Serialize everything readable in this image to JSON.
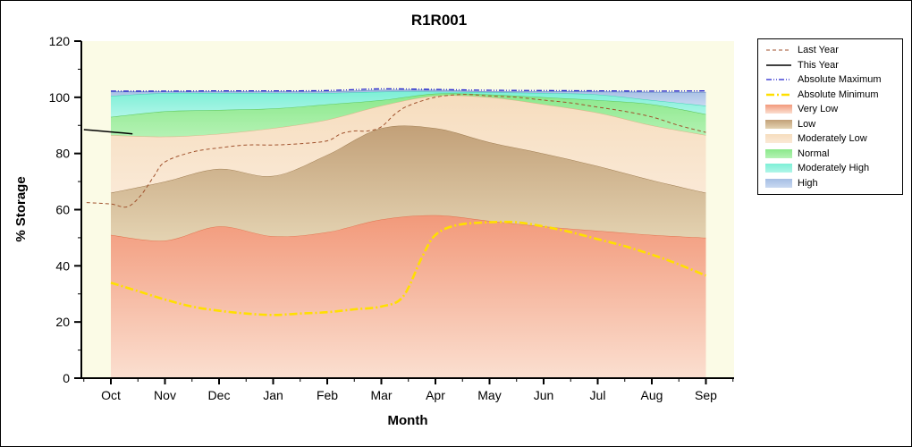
{
  "title": "R1R001",
  "axes": {
    "x_label": "Month",
    "y_label": "% Storage",
    "y_ticks": [
      "0",
      "20",
      "40",
      "60",
      "80",
      "100",
      "120"
    ],
    "months": [
      "Oct",
      "Nov",
      "Dec",
      "Jan",
      "Feb",
      "Mar",
      "Apr",
      "May",
      "Jun",
      "Jul",
      "Aug",
      "Sep"
    ]
  },
  "colors": {
    "figure_background": "#FFFFFF",
    "plot_background": "#FBFBE6",
    "axis": "#000000"
  },
  "legend": {
    "position": "right-outside",
    "items": [
      {
        "label": "Last Year",
        "kind": "line",
        "color": "#A0522D",
        "dash": "4 3",
        "width": 1
      },
      {
        "label": "This Year",
        "kind": "line",
        "color": "#000000",
        "dash": "",
        "width": 1.5
      },
      {
        "label": "Absolute Maximum",
        "kind": "line",
        "color": "#2121CE",
        "dash": "6 2 1 2 1 2",
        "width": 1.3
      },
      {
        "label": "Absolute Minimum",
        "kind": "line",
        "color": "#FFDF00",
        "dash": "9 3 2 3",
        "width": 2.6
      },
      {
        "label": "Very Low",
        "kind": "fill",
        "from": "#F2997A",
        "to": "#FBDFD0"
      },
      {
        "label": "Low",
        "kind": "fill",
        "from": "#C2A078",
        "to": "#E4D3B2"
      },
      {
        "label": "Moderately Low",
        "kind": "fill",
        "from": "#F6DDBE",
        "to": "#FAE9D6"
      },
      {
        "label": "Normal",
        "kind": "fill",
        "from": "#8AE88A",
        "to": "#B4F2B4"
      },
      {
        "label": "Moderately High",
        "kind": "fill",
        "from": "#7DEFD6",
        "to": "#B0F6E8"
      },
      {
        "label": "High",
        "kind": "fill",
        "from": "#A5BEE4",
        "to": "#C9D9F1"
      }
    ]
  },
  "chart_data": {
    "type": "area",
    "title": "R1R001",
    "xlabel": "Month",
    "ylabel": "% Storage",
    "ylim": [
      0,
      120
    ],
    "grid": false,
    "legend_position": "right-outside",
    "categories": [
      "Oct",
      "Nov",
      "Dec",
      "Jan",
      "Feb",
      "Mar",
      "Apr",
      "May",
      "Jun",
      "Jul",
      "Aug",
      "Sep"
    ],
    "bands": [
      {
        "name": "Very Low",
        "top": [
          51,
          49,
          54,
          50.5,
          52,
          56.5,
          58,
          56,
          54,
          52.5,
          51,
          50
        ],
        "fill_top": "#F2997A",
        "fill_bottom": "#FBDFD0",
        "edge": "#E2734F"
      },
      {
        "name": "Low",
        "top": [
          66,
          70,
          74.5,
          72,
          79.5,
          89,
          89,
          84,
          80,
          75.5,
          70.5,
          66
        ],
        "fill_top": "#C2A078",
        "fill_bottom": "#E4D3B2",
        "edge": "#A07E52"
      },
      {
        "name": "Moderately Low",
        "top": [
          86.5,
          86,
          87,
          89,
          92,
          97,
          100.5,
          100,
          97.5,
          94.5,
          90,
          86.5
        ],
        "fill_top": "#F6DDBE",
        "fill_bottom": "#FAE9D6",
        "edge": "#DDB488"
      },
      {
        "name": "Normal",
        "top": [
          93,
          95,
          95.5,
          96,
          97.5,
          99,
          101.3,
          101,
          100,
          99,
          97.5,
          94
        ],
        "fill_top": "#8AE88A",
        "fill_bottom": "#B4F2B4",
        "edge": "#59C659"
      },
      {
        "name": "Moderately High",
        "top": [
          100.5,
          101.5,
          101.5,
          101.5,
          101.5,
          102,
          102,
          101.8,
          101.5,
          101,
          99,
          97
        ],
        "fill_top": "#7DEFD6",
        "fill_bottom": "#B0F6E8",
        "edge": "#3FD2B4"
      },
      {
        "name": "High",
        "top": [
          102,
          102,
          102,
          102,
          102,
          102.5,
          102.5,
          102,
          102,
          102,
          101.8,
          101.8
        ],
        "fill_top": "#A5BEE4",
        "fill_bottom": "#C9D9F1",
        "edge": "#7E9CCF"
      }
    ],
    "series": [
      {
        "name": "Last Year",
        "color": "#A0522D",
        "width": 1,
        "dash": "4 3",
        "x": [
          -0.45,
          0,
          0.3,
          0.55,
          0.8,
          1,
          1.5,
          2,
          2.5,
          3,
          3.5,
          4,
          4.25,
          4.5,
          4.75,
          5,
          5.25,
          5.5,
          6,
          6.5,
          7,
          7.5,
          8,
          8.5,
          9,
          9.5,
          10,
          10.5,
          11
        ],
        "y": [
          62.5,
          62,
          61,
          65,
          72,
          77,
          80.5,
          82,
          83,
          83,
          83.5,
          84.5,
          87,
          88,
          88,
          89.5,
          94,
          97,
          100,
          101,
          100.5,
          100,
          99,
          98,
          96.5,
          95,
          93,
          90,
          87.5
        ]
      },
      {
        "name": "This Year",
        "color": "#000000",
        "width": 1.5,
        "dash": "",
        "x": [
          -0.5,
          -0.2,
          0.1,
          0.4
        ],
        "y": [
          88.5,
          88,
          87.5,
          87
        ]
      },
      {
        "name": "Absolute Maximum",
        "color": "#2121CE",
        "width": 1.3,
        "dash": "6 2 1 2 1 2",
        "x": [
          0,
          1,
          2,
          3,
          4,
          5,
          6,
          7,
          8,
          9,
          10,
          11
        ],
        "y": [
          102.2,
          102.2,
          102.3,
          102.3,
          102.4,
          103,
          102.8,
          102.5,
          102.4,
          102.3,
          102.2,
          102.3
        ]
      },
      {
        "name": "Absolute Minimum",
        "color": "#FFDF00",
        "width": 2.6,
        "dash": "9 3 2 3",
        "x": [
          0,
          0.5,
          1,
          1.5,
          2,
          2.5,
          3,
          3.5,
          4,
          4.5,
          5,
          5.4,
          5.75,
          6,
          6.4,
          7,
          7.5,
          8,
          8.5,
          9,
          9.5,
          10,
          10.5,
          11
        ],
        "y": [
          34,
          31,
          28,
          25.5,
          24,
          23,
          22.5,
          23,
          23.5,
          24.5,
          25.5,
          29,
          43,
          51,
          54.5,
          55.5,
          55.5,
          54,
          52,
          49.5,
          47,
          44,
          40.5,
          36.5
        ]
      }
    ]
  }
}
